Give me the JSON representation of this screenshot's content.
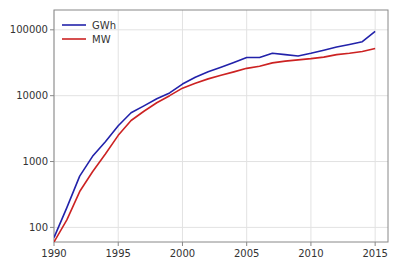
{
  "chart_data": {
    "type": "line",
    "x": [
      1990,
      1991,
      1992,
      1993,
      1994,
      1995,
      1996,
      1997,
      1998,
      1999,
      2000,
      2001,
      2002,
      2003,
      2004,
      2005,
      2006,
      2007,
      2008,
      2009,
      2010,
      2011,
      2012,
      2013,
      2014,
      2015
    ],
    "series": [
      {
        "name": "GWh",
        "color": "#2222aa",
        "values": [
          70,
          200,
          600,
          1200,
          2000,
          3500,
          5500,
          7000,
          9000,
          11000,
          15000,
          19000,
          23000,
          27000,
          32000,
          38000,
          38000,
          44000,
          42000,
          40000,
          44000,
          49000,
          55000,
          60000,
          66000,
          95000
        ]
      },
      {
        "name": "MW",
        "color": "#cc2222",
        "values": [
          60,
          130,
          350,
          700,
          1300,
          2500,
          4200,
          5800,
          7800,
          10000,
          13000,
          15500,
          18000,
          20500,
          23000,
          26000,
          28000,
          31500,
          33500,
          35000,
          36500,
          38500,
          42000,
          44000,
          47000,
          52000
        ]
      }
    ],
    "xlim": [
      1990,
      2016
    ],
    "ylim": [
      60,
      200000
    ],
    "xticks": [
      1990,
      1995,
      2000,
      2005,
      2010,
      2015
    ],
    "yticks": [
      100,
      1000,
      10000,
      100000
    ],
    "log": "y",
    "grid": true,
    "legend": "upper left"
  }
}
